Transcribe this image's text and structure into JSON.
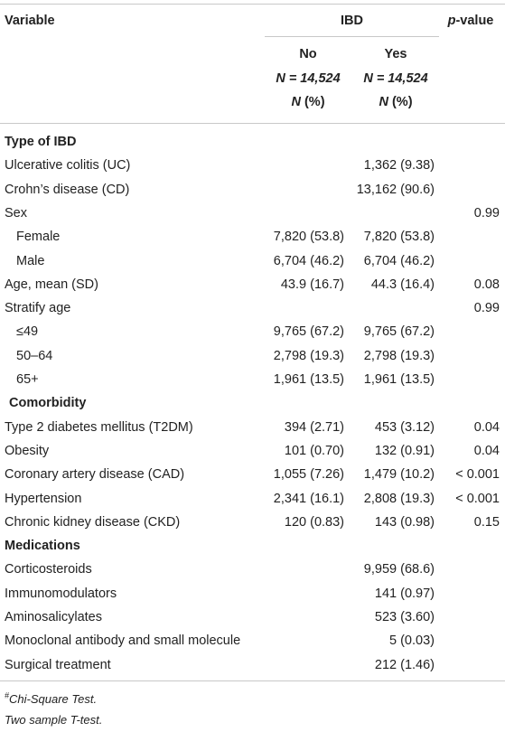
{
  "header": {
    "variable": "Variable",
    "ibd": "IBD",
    "pvalue_italic": "p",
    "pvalue_rest": "-value",
    "no": "No",
    "yes": "Yes",
    "n_no": "N = 14,524",
    "n_yes": "N = 14,524",
    "npct_no": "N (%)",
    "npct_yes": "N (%)"
  },
  "rows": [
    {
      "label": "Type of IBD",
      "no": "",
      "yes": "",
      "p": "",
      "type": "section"
    },
    {
      "label": "Ulcerative colitis (UC)",
      "no": "",
      "yes": "1,362 (9.38)",
      "p": ""
    },
    {
      "label": "Crohn’s disease (CD)",
      "no": "",
      "yes": "13,162 (90.6)",
      "p": ""
    },
    {
      "label": "Sex",
      "no": "",
      "yes": "",
      "p": "0.99"
    },
    {
      "label": "Female",
      "no": "7,820 (53.8)",
      "yes": "7,820 (53.8)",
      "p": "",
      "indent": true
    },
    {
      "label": "Male",
      "no": "6,704 (46.2)",
      "yes": "6,704 (46.2)",
      "p": "",
      "indent": true
    },
    {
      "label": "Age, mean (SD)",
      "no": "43.9 (16.7)",
      "yes": "44.3 (16.4)",
      "p": "0.08"
    },
    {
      "label": "Stratify age",
      "no": "",
      "yes": "",
      "p": "0.99"
    },
    {
      "label": "≤49",
      "no": "9,765 (67.2)",
      "yes": "9,765 (67.2)",
      "p": "",
      "indent": true
    },
    {
      "label": "50–64",
      "no": "2,798 (19.3)",
      "yes": "2,798 (19.3)",
      "p": "",
      "indent": true
    },
    {
      "label": "65+",
      "no": "1,961 (13.5)",
      "yes": "1,961 (13.5)",
      "p": "",
      "indent": true
    },
    {
      "label": "Comorbidity",
      "no": "",
      "yes": "",
      "p": "",
      "type": "section",
      "indent": true
    },
    {
      "label": "Type 2 diabetes mellitus (T2DM)",
      "no": "394 (2.71)",
      "yes": "453 (3.12)",
      "p": "0.04"
    },
    {
      "label": "Obesity",
      "no": "101 (0.70)",
      "yes": "132 (0.91)",
      "p": "0.04"
    },
    {
      "label": "Coronary artery disease (CAD)",
      "no": "1,055 (7.26)",
      "yes": "1,479 (10.2)",
      "p": "< 0.001"
    },
    {
      "label": "Hypertension",
      "no": "2,341 (16.1)",
      "yes": "2,808 (19.3)",
      "p": "< 0.001"
    },
    {
      "label": "Chronic kidney disease (CKD)",
      "no": "120 (0.83)",
      "yes": "143 (0.98)",
      "p": "0.15"
    },
    {
      "label": "Medications",
      "no": "",
      "yes": "",
      "p": "",
      "type": "section"
    },
    {
      "label": "Corticosteroids",
      "no": "",
      "yes": "9,959 (68.6)",
      "p": ""
    },
    {
      "label": "Immunomodulators",
      "no": "",
      "yes": "141 (0.97)",
      "p": ""
    },
    {
      "label": "Aminosalicylates",
      "no": "",
      "yes": "523 (3.60)",
      "p": ""
    },
    {
      "label": "Monoclonal antibody and small molecule",
      "no": "",
      "yes": "5 (0.03)",
      "p": ""
    },
    {
      "label": "Surgical treatment",
      "no": "",
      "yes": "212 (1.46)",
      "p": ""
    }
  ],
  "footnotes": [
    {
      "mark": "#",
      "text": "Chi-Square Test."
    },
    {
      "mark": "",
      "text": "Two sample T-test."
    }
  ]
}
